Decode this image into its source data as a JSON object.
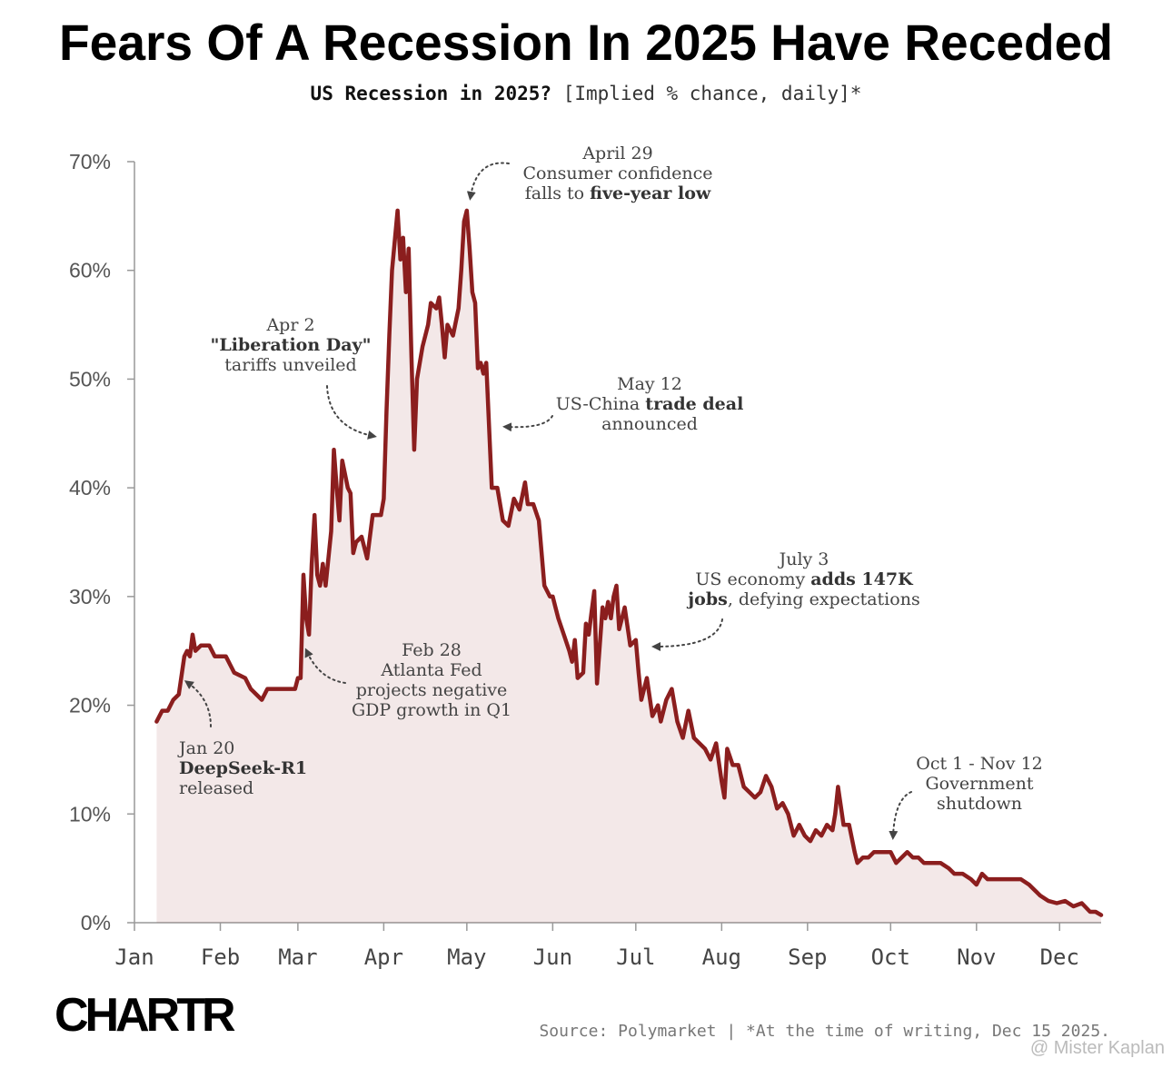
{
  "chart_data": {
    "type": "line",
    "title": "Fears Of A Recession In 2025 Have Receded",
    "subtitle": [
      "US Recession in 2025?",
      " [Implied % chance, daily]*"
    ],
    "color": "#8b1e1e",
    "x": [
      8,
      10,
      12,
      14,
      16,
      18,
      19,
      20,
      21,
      22,
      24,
      27,
      29,
      33,
      36,
      40,
      42,
      44,
      46,
      48,
      50,
      55,
      58,
      59,
      60,
      61,
      62,
      63,
      64,
      65,
      66,
      67,
      68,
      69,
      71,
      72,
      73,
      74,
      75,
      77,
      78,
      79,
      80,
      82,
      84,
      86,
      89,
      90,
      91,
      92,
      93,
      95,
      96,
      97,
      98,
      99,
      100,
      101,
      102,
      104,
      106,
      107,
      109,
      110,
      111,
      112,
      113,
      115,
      117,
      118,
      119,
      120,
      121,
      122,
      123,
      124,
      125,
      126,
      127,
      129,
      131,
      133,
      135,
      137,
      139,
      141,
      142,
      144,
      146,
      148,
      150,
      151,
      152,
      153,
      155,
      157,
      158,
      159,
      160,
      162,
      163,
      164,
      165,
      166,
      167,
      169,
      170,
      171,
      172,
      173,
      174,
      175,
      176,
      177,
      179,
      181,
      182,
      183,
      185,
      187,
      189,
      190,
      192,
      194,
      196,
      198,
      200,
      202,
      204,
      206,
      208,
      210,
      212,
      213,
      214,
      216,
      218,
      220,
      222,
      224,
      226,
      228,
      230,
      232,
      234,
      236,
      238,
      240,
      242,
      244,
      246,
      248,
      250,
      252,
      253,
      254,
      256,
      258,
      260,
      261,
      263,
      265,
      267,
      270,
      273,
      275,
      277,
      279,
      281,
      283,
      285,
      288,
      291,
      294,
      296,
      299,
      302,
      304,
      306,
      308,
      310,
      312,
      316,
      320,
      323,
      325,
      327,
      330,
      333,
      336,
      339,
      342,
      345,
      347,
      349
    ],
    "values": [
      18.5,
      19.5,
      19.5,
      20.5,
      21,
      24.5,
      25,
      24.5,
      26.5,
      25,
      25.5,
      25.5,
      24.5,
      24.5,
      23,
      22.5,
      21.5,
      21,
      20.5,
      21.5,
      21.5,
      21.5,
      21.5,
      22.5,
      22.5,
      32,
      28,
      26.5,
      33,
      37.5,
      32,
      31,
      33,
      31,
      36,
      43.5,
      40,
      37,
      42.5,
      40,
      39.5,
      34,
      35,
      35.5,
      33.5,
      37.5,
      37.5,
      39,
      47,
      54,
      60,
      65.5,
      61,
      63,
      58,
      62,
      52,
      43.5,
      50,
      53,
      55,
      57,
      56.5,
      57.5,
      55,
      52,
      55,
      54,
      56.5,
      60,
      64.5,
      65.5,
      62,
      58,
      57,
      51,
      51.5,
      50.5,
      51.5,
      40,
      40,
      37,
      36.5,
      39,
      38,
      40.5,
      38.5,
      38.5,
      37,
      31,
      30,
      30,
      29,
      28,
      26.5,
      25,
      24,
      26,
      22.5,
      23,
      27.5,
      26.5,
      28.5,
      30.5,
      22,
      29,
      28,
      29.5,
      28,
      30,
      31,
      27,
      28,
      29,
      25.5,
      26,
      23,
      20.5,
      22.5,
      19,
      20,
      18.5,
      20.5,
      21.5,
      18.5,
      17,
      19.5,
      17,
      16.5,
      16,
      15,
      16.5,
      13,
      11.5,
      16,
      14.5,
      14.5,
      12.5,
      12,
      11.5,
      12,
      13.5,
      12.5,
      10.5,
      11,
      10,
      8,
      9,
      8,
      7.5,
      8.5,
      8,
      9,
      8.5,
      10,
      12.5,
      9,
      9,
      6.5,
      5.5,
      6,
      6,
      6.5,
      6.5,
      6.5,
      5.5,
      6,
      6.5,
      6,
      6,
      5.5,
      5.5,
      5.5,
      5,
      4.5,
      4.5,
      4,
      3.5,
      4.5,
      4,
      4,
      4,
      4,
      4,
      3.5,
      3,
      2.5,
      2,
      1.8,
      2,
      1.5,
      1.8,
      1,
      1,
      0.7
    ],
    "xlim": [
      0,
      349
    ],
    "xticks": [
      {
        "value": 0,
        "label": "Jan"
      },
      {
        "value": 31,
        "label": "Feb"
      },
      {
        "value": 59,
        "label": "Mar"
      },
      {
        "value": 90,
        "label": "Apr"
      },
      {
        "value": 120,
        "label": "May"
      },
      {
        "value": 151,
        "label": "Jun"
      },
      {
        "value": 181,
        "label": "Jul"
      },
      {
        "value": 212,
        "label": "Aug"
      },
      {
        "value": 243,
        "label": "Sep"
      },
      {
        "value": 273,
        "label": "Oct"
      },
      {
        "value": 304,
        "label": "Nov"
      },
      {
        "value": 334,
        "label": "Dec"
      }
    ],
    "ylim": [
      0,
      70
    ],
    "yticks": [
      {
        "value": 0,
        "label": "0%"
      },
      {
        "value": 10,
        "label": "10%"
      },
      {
        "value": 20,
        "label": "20%"
      },
      {
        "value": 30,
        "label": "30%"
      },
      {
        "value": 40,
        "label": "40%"
      },
      {
        "value": 50,
        "label": "50%"
      },
      {
        "value": 60,
        "label": "60%"
      },
      {
        "value": 70,
        "label": "70%"
      }
    ],
    "annotations": [
      [
        [
          {
            "t": "Jan 20"
          }
        ],
        [
          {
            "t": "DeepSeek-R1",
            "bold": true
          }
        ],
        [
          {
            "t": "released"
          }
        ]
      ],
      [
        [
          {
            "t": "Feb 28"
          }
        ],
        [
          {
            "t": "Atlanta Fed"
          }
        ],
        [
          {
            "t": "projects negative"
          }
        ],
        [
          {
            "t": "GDP growth in Q1"
          }
        ]
      ],
      [
        [
          {
            "t": "Apr 2"
          }
        ],
        [
          {
            "t": "\"Liberation Day\"",
            "bold": true
          }
        ],
        [
          {
            "t": "tariffs unveiled"
          }
        ]
      ],
      [
        [
          {
            "t": "April 29"
          }
        ],
        [
          {
            "t": "Consumer confidence"
          }
        ],
        [
          {
            "t": "falls to "
          },
          {
            "t": "five-year low",
            "bold": true
          }
        ]
      ],
      [
        [
          {
            "t": "May 12"
          }
        ],
        [
          {
            "t": "US-China "
          },
          {
            "t": "trade deal",
            "bold": true
          }
        ],
        [
          {
            "t": "announced"
          }
        ]
      ],
      [
        [
          {
            "t": "July 3"
          }
        ],
        [
          {
            "t": "US economy "
          },
          {
            "t": "adds 147K",
            "bold": true
          }
        ],
        [
          {
            "t": "jobs",
            "bold": true
          },
          {
            "t": ", defying expectations"
          }
        ]
      ],
      [
        [
          {
            "t": "Oct 1 - Nov 12"
          }
        ],
        [
          {
            "t": "Government"
          }
        ],
        [
          {
            "t": "shutdown"
          }
        ]
      ]
    ],
    "logo": "CHARTR",
    "source": "Source: Polymarket | *At the time of writing, Dec 15 2025.",
    "watermark": "@ Mister Kaplan"
  }
}
